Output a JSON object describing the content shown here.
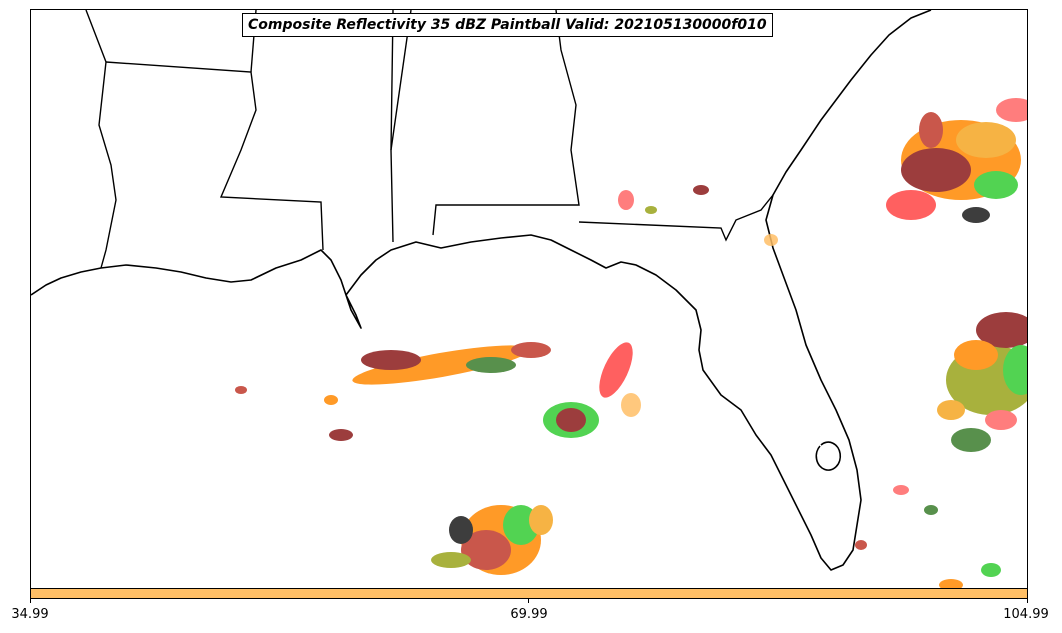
{
  "title": "Composite Reflectivity 35 dBZ Paintball Valid: 202105130000f010",
  "colorbar": {
    "color": "#ffbf66",
    "ticks": [
      "34.99",
      "69.99",
      "104.99"
    ]
  },
  "map": {
    "region": "Southeastern United States and Gulf of Mexico",
    "ensemble_member_colors": [
      "#ff6666",
      "#ff8800",
      "#8b1a1a",
      "#3a7d2c",
      "#33cc33",
      "#1a1a1a",
      "#99a31a",
      "#f5a623",
      "#c0392b"
    ]
  }
}
